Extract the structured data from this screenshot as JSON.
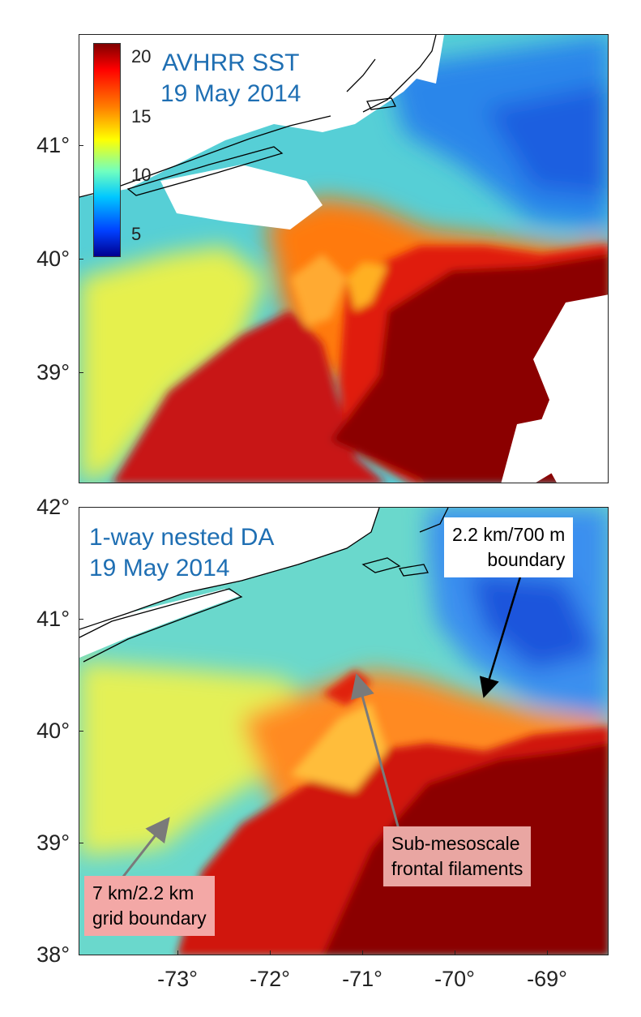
{
  "top_panel": {
    "title_line1": "AVHRR SST",
    "title_line2": "19 May 2014",
    "y_ticks": [
      "41°",
      "40°",
      "39°"
    ],
    "colorbar": {
      "labels": [
        "20",
        "15",
        "10",
        "5"
      ],
      "values": [
        20,
        15,
        10,
        5
      ],
      "range": [
        3,
        21
      ],
      "colormap": "jet"
    }
  },
  "bottom_panel": {
    "title_line1": "1-way nested DA",
    "title_line2": "19 May 2014",
    "y_ticks": [
      "42°",
      "41°",
      "40°",
      "39°",
      "38°"
    ],
    "annotations": [
      {
        "line1": "2.2 km/700 m",
        "line2": "boundary"
      },
      {
        "line1": "Sub-mesoscale",
        "line2": "frontal filaments"
      },
      {
        "line1": "7 km/2.2 km",
        "line2": "grid boundary"
      }
    ]
  },
  "x_ticks": [
    "-73°",
    "-72°",
    "-71°",
    "-70°",
    "-69°"
  ],
  "colors": {
    "gulf_stream": "#8b0000",
    "slope_sea": "#e8f550",
    "shelf_water": "#4fd0d8",
    "cold_water": "#1e6fe0",
    "land": "#ffffff",
    "title_blue": "#1f6fb3"
  }
}
